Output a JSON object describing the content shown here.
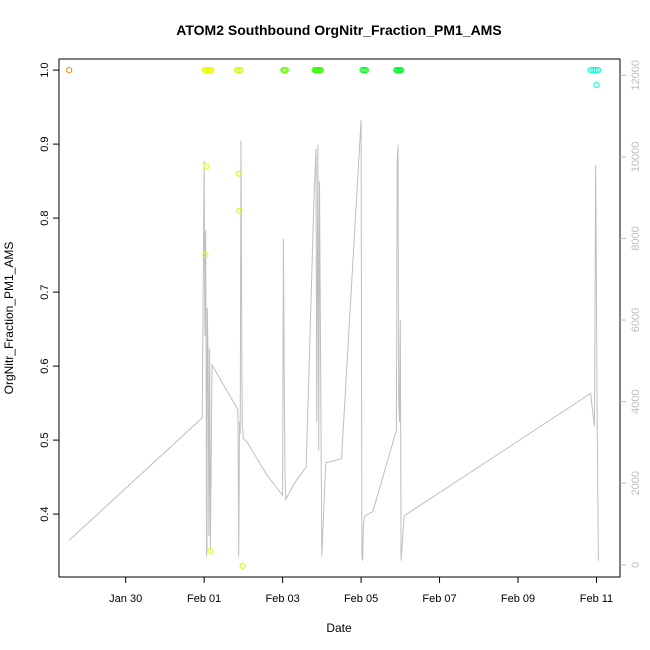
{
  "chart_data": {
    "type": "scatter",
    "title": "ATOM2 Southbound OrgNitr_Fraction_PM1_AMS",
    "xlabel": "Date",
    "ylabel": "OrgNitr_Fraction_PM1_AMS",
    "x_ticks": [
      "Jan 30",
      "Feb 01",
      "Feb 03",
      "Feb 05",
      "Feb 07",
      "Feb 09",
      "Feb 11"
    ],
    "x_tick_days": [
      30,
      32,
      34,
      36,
      38,
      40,
      42
    ],
    "xlim": [
      28.3,
      42.6
    ],
    "ylim": [
      0.315,
      1.015
    ],
    "y_ticks": [
      0.4,
      0.5,
      0.6,
      0.7,
      0.8,
      0.9,
      1.0
    ],
    "y_tick_labels": [
      "0.4",
      "0.5",
      "0.6",
      "0.7",
      "0.8",
      "0.9",
      "1.0"
    ],
    "y2lim": [
      -300,
      12400
    ],
    "y2_ticks": [
      0,
      2000,
      4000,
      6000,
      8000,
      10000,
      12000
    ],
    "y2_tick_labels": [
      "0",
      "2000",
      "4000",
      "6000",
      "8000",
      "10000",
      "12000"
    ],
    "grid": false,
    "points": [
      {
        "x": 28.56,
        "y": 1.0,
        "color": "#ff7f00"
      },
      {
        "x": 32.02,
        "y": 1.0,
        "color": "#e6ff00"
      },
      {
        "x": 32.05,
        "y": 1.0,
        "color": "#e6ff00"
      },
      {
        "x": 32.08,
        "y": 1.0,
        "color": "#e6ff00"
      },
      {
        "x": 32.11,
        "y": 1.0,
        "color": "#e6ff00"
      },
      {
        "x": 32.15,
        "y": 1.0,
        "color": "#e6ff00"
      },
      {
        "x": 32.18,
        "y": 1.0,
        "color": "#e6ff00"
      },
      {
        "x": 32.03,
        "y": 0.75,
        "color": "#e6ff00"
      },
      {
        "x": 32.06,
        "y": 0.87,
        "color": "#e6ff00"
      },
      {
        "x": 32.16,
        "y": 0.35,
        "color": "#e6ff00"
      },
      {
        "x": 32.84,
        "y": 1.0,
        "color": "#ccff00"
      },
      {
        "x": 32.88,
        "y": 1.0,
        "color": "#ccff00"
      },
      {
        "x": 32.92,
        "y": 1.0,
        "color": "#ccff00"
      },
      {
        "x": 32.88,
        "y": 0.86,
        "color": "#ccff00"
      },
      {
        "x": 32.9,
        "y": 0.81,
        "color": "#ccff00"
      },
      {
        "x": 32.98,
        "y": 0.33,
        "color": "#ccff00"
      },
      {
        "x": 34.02,
        "y": 1.0,
        "color": "#66ff00"
      },
      {
        "x": 34.05,
        "y": 1.0,
        "color": "#66ff00"
      },
      {
        "x": 34.08,
        "y": 1.0,
        "color": "#66ff00"
      },
      {
        "x": 34.82,
        "y": 1.0,
        "color": "#33ff00"
      },
      {
        "x": 34.85,
        "y": 1.0,
        "color": "#33ff00"
      },
      {
        "x": 34.88,
        "y": 1.0,
        "color": "#33ff00"
      },
      {
        "x": 34.91,
        "y": 1.0,
        "color": "#33ff00"
      },
      {
        "x": 34.94,
        "y": 1.0,
        "color": "#33ff00"
      },
      {
        "x": 34.97,
        "y": 1.0,
        "color": "#33ff00"
      },
      {
        "x": 36.04,
        "y": 1.0,
        "color": "#00ff19"
      },
      {
        "x": 36.08,
        "y": 1.0,
        "color": "#00ff19"
      },
      {
        "x": 36.12,
        "y": 1.0,
        "color": "#00ff19"
      },
      {
        "x": 36.9,
        "y": 1.0,
        "color": "#00ff33"
      },
      {
        "x": 36.93,
        "y": 1.0,
        "color": "#00ff33"
      },
      {
        "x": 36.96,
        "y": 1.0,
        "color": "#00ff33"
      },
      {
        "x": 36.99,
        "y": 1.0,
        "color": "#00ff33"
      },
      {
        "x": 37.02,
        "y": 1.0,
        "color": "#00ff33"
      },
      {
        "x": 41.85,
        "y": 1.0,
        "color": "#00ffcc"
      },
      {
        "x": 41.92,
        "y": 1.0,
        "color": "#00ffcc"
      },
      {
        "x": 41.98,
        "y": 1.0,
        "color": "#00ffcc"
      },
      {
        "x": 42.04,
        "y": 1.0,
        "color": "#00ffcc"
      },
      {
        "x": 42.0,
        "y": 0.98,
        "color": "#00ffcc"
      }
    ],
    "secondary_line": {
      "axis": "right",
      "color": "#bebebe",
      "x": [
        28.56,
        31.95,
        32.0,
        32.02,
        32.04,
        32.05,
        32.06,
        32.07,
        32.08,
        32.1,
        32.12,
        32.14,
        32.16,
        32.2,
        32.86,
        32.88,
        32.9,
        32.92,
        32.94,
        32.96,
        32.97,
        33.0,
        33.1,
        33.6,
        34.0,
        34.02,
        34.04,
        34.06,
        34.08,
        34.3,
        34.6,
        34.8,
        34.85,
        34.87,
        34.9,
        34.92,
        34.94,
        35.0,
        35.1,
        35.5,
        36.0,
        36.02,
        36.04,
        36.06,
        36.1,
        36.3,
        36.9,
        36.92,
        36.94,
        36.96,
        36.98,
        37.0,
        37.02,
        37.1,
        41.85,
        41.9,
        41.95,
        41.98,
        42.02,
        42.05
      ],
      "y": [
        600,
        3600,
        9900,
        5600,
        8200,
        5500,
        200,
        400,
        6300,
        5100,
        700,
        5300,
        400,
        4900,
        3800,
        200,
        3500,
        3200,
        10400,
        5400,
        3500,
        3100,
        3000,
        2200,
        1700,
        8000,
        4600,
        2200,
        1600,
        2000,
        2400,
        9000,
        10200,
        3500,
        10300,
        2800,
        9400,
        200,
        2500,
        2600,
        10900,
        200,
        100,
        1000,
        1200,
        1300,
        3300,
        9900,
        10300,
        4000,
        3500,
        6000,
        100,
        1200,
        4200,
        3800,
        3400,
        9800,
        3500,
        100
      ]
    }
  }
}
